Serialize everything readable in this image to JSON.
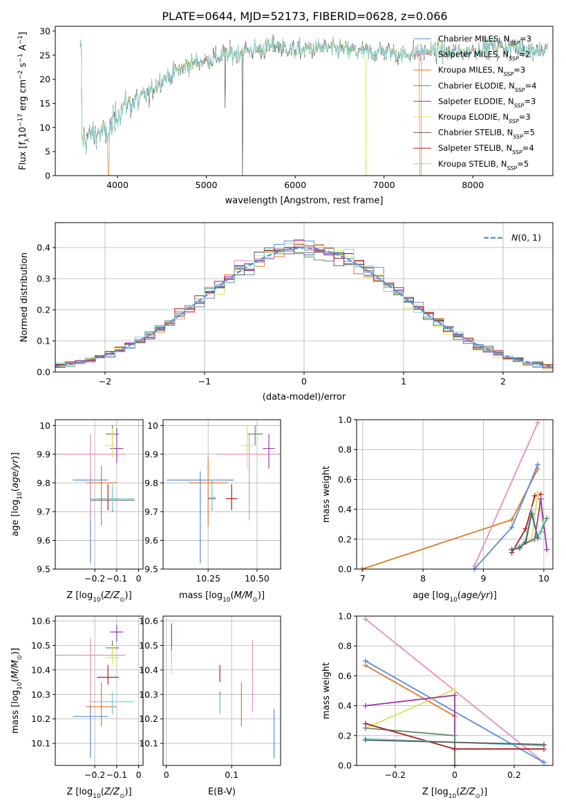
{
  "figure": {
    "title": "PLATE=0644, MJD=52173, FIBERID=0628, z=0.066"
  },
  "colors": {
    "Chabrier MILES": "#5b8bd6",
    "Salpeter MILES": "#e58fc0",
    "Kroupa MILES": "#e07a2a",
    "Chabrier ELODIE": "#5f8a6a",
    "Salpeter ELODIE": "#9a35b0",
    "Kroupa ELODIE": "#d9e35a",
    "Chabrier STELIB": "#5a5a5a",
    "Salpeter STELIB": "#b01a1a",
    "Kroupa STELIB": "#7fd6dd",
    "gaussian": "#5b8bd6"
  },
  "chart_data": [
    {
      "id": "spectrum",
      "type": "line",
      "title": "PLATE=0644, MJD=52173, FIBERID=0628, z=0.066",
      "xlabel": "wavelength [Angstrom, rest frame]",
      "ylabel": "Flux [f_λ 10^-17 erg cm^-2 s^-1 A^-1]",
      "xlim": [
        3300,
        8900
      ],
      "ylim": [
        0,
        31
      ],
      "xticks": [
        4000,
        5000,
        6000,
        7000,
        8000
      ],
      "yticks": [
        0,
        5,
        10,
        15,
        20,
        25,
        30
      ],
      "grid": false,
      "legend": "right",
      "continuum": {
        "x": [
          3600,
          3700,
          3800,
          3900,
          4000,
          4100,
          4300,
          4500,
          4800,
          5000,
          5200,
          5500,
          5800,
          6000,
          6300,
          6600,
          6800,
          7000,
          7200,
          7500,
          7800,
          8000,
          8200,
          8500,
          8800
        ],
        "y": [
          7,
          8.5,
          9,
          8.5,
          13,
          15,
          16,
          20,
          23,
          24,
          25,
          26,
          27,
          26,
          26.5,
          26,
          25.5,
          26,
          25,
          26,
          25.5,
          26,
          27,
          26.5,
          26
        ]
      },
      "series": [
        {
          "name": "Chabrier MILES",
          "nssp": "3"
        },
        {
          "name": "Salpeter MILES",
          "nssp": "2"
        },
        {
          "name": "Kroupa MILES",
          "nssp": "3"
        },
        {
          "name": "Chabrier ELODIE",
          "nssp": "4"
        },
        {
          "name": "Salpeter ELODIE",
          "nssp": "3"
        },
        {
          "name": "Kroupa ELODIE",
          "nssp": "3"
        },
        {
          "name": "Chabrier STELIB",
          "nssp": "5"
        },
        {
          "name": "Salpeter STELIB",
          "nssp": "4"
        },
        {
          "name": "Kroupa STELIB",
          "nssp": "5"
        }
      ]
    },
    {
      "id": "residuals",
      "type": "line",
      "xlabel": "(data-model)/error",
      "ylabel": "Normed distribution",
      "xlim": [
        -2.5,
        2.5
      ],
      "ylim": [
        0,
        0.48
      ],
      "xticks": [
        -2,
        -1,
        0,
        1,
        2
      ],
      "yticks": [
        0.0,
        0.1,
        0.2,
        0.3,
        0.4
      ],
      "grid": true,
      "legend": "top-right",
      "legend_label": "N(0,1)",
      "bin_width": 0.1
    },
    {
      "id": "age_vs_Z",
      "type": "scatter",
      "xlabel": "Z [log10(Z/Z⊙)]",
      "ylabel": "age  [log10(age/yr)]",
      "xlim": [
        -0.38,
        0.02
      ],
      "ylim": [
        9.5,
        10.02
      ],
      "xticks": [
        -0.2,
        -0.1,
        0.0
      ],
      "yticks": [
        9.5,
        9.6,
        9.7,
        9.8,
        9.9,
        10.0
      ],
      "grid": true,
      "points": [
        {
          "series": "Chabrier MILES",
          "x": -0.22,
          "xerr": 0.08,
          "y": 9.81,
          "yerr": [
            0.29,
            0.03
          ]
        },
        {
          "series": "Salpeter MILES",
          "x": -0.22,
          "xerr": 0.16,
          "y": 9.9,
          "yerr": [
            0.23,
            0.07
          ]
        },
        {
          "series": "Kroupa MILES",
          "x": -0.17,
          "xerr": 0.07,
          "y": 9.8,
          "yerr": [
            0.15,
            0.06
          ]
        },
        {
          "series": "Chabrier ELODIE",
          "x": -0.12,
          "xerr": 0.03,
          "y": 9.97,
          "yerr": [
            0.04,
            0.03
          ]
        },
        {
          "series": "Salpeter ELODIE",
          "x": -0.1,
          "xerr": 0.03,
          "y": 9.92,
          "yerr": [
            0.05,
            0.07
          ]
        },
        {
          "series": "Kroupa ELODIE",
          "x": -0.12,
          "xerr": 0.03,
          "y": 9.93,
          "yerr": [
            0.04,
            0.06
          ]
        },
        {
          "series": "Chabrier STELIB",
          "x": -0.12,
          "xerr": 0.1,
          "y": 9.74,
          "yerr": [
            0.04,
            0.05
          ]
        },
        {
          "series": "Salpeter STELIB",
          "x": -0.14,
          "xerr": 0.05,
          "y": 9.745,
          "yerr": [
            0.04,
            0.05
          ]
        },
        {
          "series": "Kroupa STELIB",
          "x": -0.12,
          "xerr": 0.1,
          "y": 9.745,
          "yerr": [
            0.04,
            0.05
          ]
        }
      ]
    },
    {
      "id": "age_vs_mass",
      "type": "scatter",
      "xlabel": "mass [log10(M/M⊙)]",
      "ylabel": "",
      "xlim": [
        10.02,
        10.62
      ],
      "ylim": [
        9.5,
        10.02
      ],
      "xticks": [
        10.25,
        10.5
      ],
      "yticks": [
        9.5,
        9.6,
        9.7,
        9.8,
        9.9,
        10.0
      ],
      "tick_labels_x": [
        "10.25",
        "10.50"
      ],
      "grid": true,
      "points": [
        {
          "series": "Chabrier MILES",
          "x": 10.21,
          "xerr": 0.17,
          "y": 9.81,
          "yerr": [
            0.29,
            0.03
          ]
        },
        {
          "series": "Salpeter MILES",
          "x": 10.46,
          "xerr": 0.17,
          "y": 9.9,
          "yerr": [
            0.23,
            0.07
          ]
        },
        {
          "series": "Kroupa MILES",
          "x": 10.25,
          "xerr": 0.1,
          "y": 9.8,
          "yerr": [
            0.15,
            0.09
          ]
        },
        {
          "series": "Chabrier ELODIE",
          "x": 10.49,
          "xerr": 0.04,
          "y": 9.97,
          "yerr": [
            0.04,
            0.03
          ]
        },
        {
          "series": "Salpeter ELODIE",
          "x": 10.56,
          "xerr": 0.03,
          "y": 9.92,
          "yerr": [
            0.07,
            0.05
          ]
        },
        {
          "series": "Kroupa ELODIE",
          "x": 10.45,
          "xerr": 0.03,
          "y": 9.93,
          "yerr": [
            0.08,
            0.07
          ]
        },
        {
          "series": "Chabrier STELIB",
          "x": 10.27,
          "xerr": 0.02,
          "y": 9.745,
          "yerr": [
            0.04,
            0.06
          ]
        },
        {
          "series": "Salpeter STELIB",
          "x": 10.37,
          "xerr": 0.03,
          "y": 9.745,
          "yerr": [
            0.04,
            0.05
          ]
        },
        {
          "series": "Kroupa STELIB",
          "x": 10.27,
          "xerr": 0.02,
          "y": 9.75,
          "yerr": [
            0.04,
            0.05
          ]
        }
      ]
    },
    {
      "id": "cum_age",
      "type": "line",
      "xlabel": "age  [log10(age/yr)]",
      "ylabel": "mass weight",
      "xlim": [
        6.9,
        10.15
      ],
      "ylim": [
        0,
        1.0
      ],
      "xticks": [
        7,
        8,
        9,
        10
      ],
      "yticks": [
        0.0,
        0.2,
        0.4,
        0.6,
        0.8,
        1.0
      ],
      "grid": true,
      "series": [
        {
          "name": "Salpeter MILES",
          "x": [
            8.85,
            9.9
          ],
          "y": [
            0.02,
            0.98
          ]
        },
        {
          "name": "Kroupa MILES",
          "x": [
            6.99,
            9.47,
            9.9
          ],
          "y": [
            0.0,
            0.33,
            0.67
          ]
        },
        {
          "name": "Chabrier MILES",
          "x": [
            8.85,
            9.47,
            9.9
          ],
          "y": [
            0.0,
            0.28,
            0.7
          ]
        },
        {
          "name": "Salpeter STELIB",
          "x": [
            9.47,
            9.7,
            9.85,
            9.95
          ],
          "y": [
            0.11,
            0.27,
            0.49,
            0.5
          ]
        },
        {
          "name": "Kroupa ELODIE",
          "x": [
            9.47,
            9.8,
            9.9,
            10.0
          ],
          "y": [
            0.13,
            0.2,
            0.51,
            0.27
          ]
        },
        {
          "name": "Salpeter ELODIE",
          "x": [
            9.47,
            9.85,
            9.95,
            10.05
          ],
          "y": [
            0.13,
            0.2,
            0.47,
            0.13
          ]
        },
        {
          "name": "Chabrier ELODIE",
          "x": [
            9.47,
            9.85,
            9.95,
            10.05
          ],
          "y": [
            0.13,
            0.2,
            0.25,
            0.34
          ]
        },
        {
          "name": "Kroupa STELIB",
          "x": [
            9.47,
            9.6,
            9.7,
            9.8,
            9.9,
            10.0
          ],
          "y": [
            0.13,
            0.15,
            0.2,
            0.4,
            0.2,
            0.32
          ]
        },
        {
          "name": "Chabrier STELIB",
          "x": [
            9.47,
            9.6,
            9.7,
            9.8,
            9.9
          ],
          "y": [
            0.13,
            0.14,
            0.18,
            0.37,
            0.21
          ]
        }
      ]
    },
    {
      "id": "mass_vs_Z",
      "type": "scatter",
      "xlabel": "Z [log10(Z/Z⊙)]",
      "ylabel": "mass [log10(M/M⊙)]",
      "xlim": [
        -0.38,
        0.02
      ],
      "ylim": [
        10.01,
        10.62
      ],
      "xticks": [
        -0.2,
        -0.1,
        0.0
      ],
      "yticks": [
        10.1,
        10.2,
        10.3,
        10.4,
        10.5,
        10.6
      ],
      "grid": true,
      "points": [
        {
          "series": "Chabrier MILES",
          "x": -0.22,
          "xerr": 0.08,
          "y": 10.21,
          "yerr": [
            0.17,
            0.05
          ]
        },
        {
          "series": "Salpeter MILES",
          "x": -0.22,
          "xerr": 0.16,
          "y": 10.46,
          "yerr": [
            0.21,
            0.07
          ]
        },
        {
          "series": "Kroupa MILES",
          "x": -0.17,
          "xerr": 0.07,
          "y": 10.25,
          "yerr": [
            0.08,
            0.1
          ]
        },
        {
          "series": "Chabrier ELODIE",
          "x": -0.12,
          "xerr": 0.03,
          "y": 10.49,
          "yerr": [
            0.04,
            0.03
          ]
        },
        {
          "series": "Salpeter ELODIE",
          "x": -0.1,
          "xerr": 0.03,
          "y": 10.555,
          "yerr": [
            0.04,
            0.03
          ]
        },
        {
          "series": "Kroupa ELODIE",
          "x": -0.12,
          "xerr": 0.03,
          "y": 10.45,
          "yerr": [
            0.03,
            0.05
          ]
        },
        {
          "series": "Chabrier STELIB",
          "x": -0.12,
          "xerr": 0.1,
          "y": 10.27,
          "yerr": [
            0.05,
            0.04
          ]
        },
        {
          "series": "Salpeter STELIB",
          "x": -0.14,
          "xerr": 0.05,
          "y": 10.37,
          "yerr": [
            0.03,
            0.05
          ]
        },
        {
          "series": "Kroupa STELIB",
          "x": -0.12,
          "xerr": 0.1,
          "y": 10.27,
          "yerr": [
            0.05,
            0.04
          ]
        }
      ]
    },
    {
      "id": "mass_vs_ebv",
      "type": "scatter",
      "xlabel": "E(B-V)",
      "ylabel": "",
      "xlim": [
        -0.005,
        0.175
      ],
      "ylim": [
        10.01,
        10.62
      ],
      "xticks": [
        0.0,
        0.1
      ],
      "yticks": [
        10.1,
        10.2,
        10.3,
        10.4,
        10.5,
        10.6
      ],
      "grid": true,
      "points": [
        {
          "series": "Chabrier MILES",
          "x": 0.165,
          "y": 10.14,
          "yerr": [
            0.1,
            0.1
          ]
        },
        {
          "series": "Salpeter MILES",
          "x": 0.132,
          "y": 10.4,
          "yerr": [
            0.17,
            0.12
          ]
        },
        {
          "series": "Kroupa MILES",
          "x": 0.115,
          "y": 10.26,
          "yerr": [
            0.09,
            0.09
          ]
        },
        {
          "series": "Chabrier ELODIE",
          "x": 0.008,
          "y": 10.48,
          "yerr": [
            0.05,
            0.03
          ]
        },
        {
          "series": "Salpeter ELODIE",
          "x": 0.008,
          "y": 10.55,
          "yerr": [
            0.05,
            0.04
          ]
        },
        {
          "series": "Kroupa ELODIE",
          "x": 0.008,
          "y": 10.42,
          "yerr": [
            0.04,
            0.06
          ]
        },
        {
          "series": "Chabrier STELIB",
          "x": 0.082,
          "y": 10.27,
          "yerr": [
            0.05,
            0.04
          ]
        },
        {
          "series": "Salpeter STELIB",
          "x": 0.082,
          "y": 10.39,
          "yerr": [
            0.04,
            0.03
          ]
        },
        {
          "series": "Kroupa STELIB",
          "x": 0.082,
          "y": 10.26,
          "yerr": [
            0.04,
            0.04
          ]
        }
      ]
    },
    {
      "id": "cum_Z",
      "type": "line",
      "xlabel": "Z [log10(Z/Z⊙)]",
      "ylabel": "mass weight",
      "xlim": [
        -0.33,
        0.33
      ],
      "ylim": [
        0,
        1.0
      ],
      "xticks": [
        -0.2,
        0.0,
        0.2
      ],
      "yticks": [
        0.0,
        0.2,
        0.4,
        0.6,
        0.8,
        1.0
      ],
      "grid": true,
      "series": [
        {
          "name": "Salpeter MILES",
          "x": [
            -0.3,
            0.3
          ],
          "y": [
            0.98,
            0.02
          ]
        },
        {
          "name": "Chabrier MILES",
          "x": [
            -0.3,
            0.3
          ],
          "y": [
            0.7,
            0.02
          ]
        },
        {
          "name": "Kroupa MILES",
          "x": [
            -0.3,
            0.0,
            0.0
          ],
          "y": [
            0.67,
            0.33,
            0.0
          ]
        },
        {
          "name": "Kroupa ELODIE",
          "x": [
            -0.3,
            0.0,
            0.0
          ],
          "y": [
            0.25,
            0.51,
            0.0
          ]
        },
        {
          "name": "Salpeter ELODIE",
          "x": [
            -0.3,
            0.0,
            0.0
          ],
          "y": [
            0.4,
            0.47,
            0.0
          ]
        },
        {
          "name": "Chabrier ELODIE",
          "x": [
            -0.3,
            0.0,
            0.0
          ],
          "y": [
            0.25,
            0.2,
            0.0
          ]
        },
        {
          "name": "Salpeter STELIB",
          "x": [
            -0.3,
            0.0,
            0.3
          ],
          "y": [
            0.28,
            0.11,
            0.11
          ]
        },
        {
          "name": "Kroupa STELIB",
          "x": [
            -0.3,
            0.3
          ],
          "y": [
            0.18,
            0.13
          ]
        },
        {
          "name": "Chabrier STELIB",
          "x": [
            -0.3,
            0.3
          ],
          "y": [
            0.17,
            0.14
          ]
        }
      ]
    }
  ]
}
